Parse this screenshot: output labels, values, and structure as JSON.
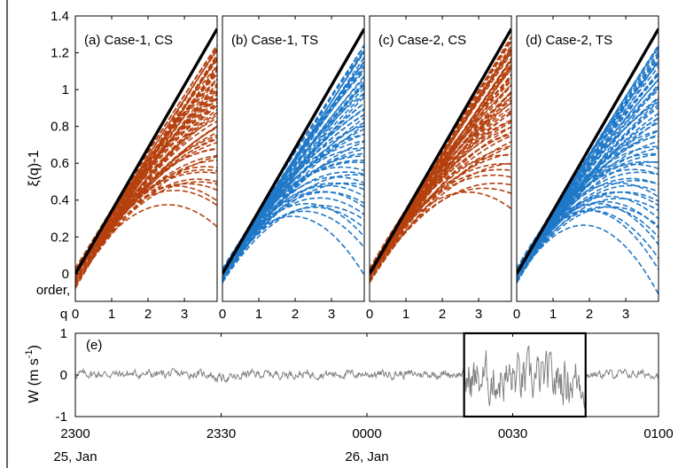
{
  "chart_data": [
    {
      "type": "line",
      "panel": "(a)",
      "title": "(a) Case-1, CS",
      "ylabel": "ξ(q)-1",
      "xlabel": "q",
      "xlabel_prefix": "order,",
      "x": [
        0,
        1,
        2,
        3,
        3.9
      ],
      "xticks": [
        "0",
        "1",
        "2",
        "3"
      ],
      "yticks": [
        "0",
        "0.2",
        "0.4",
        "0.6",
        "0.8",
        "1",
        "1.2",
        "1.4"
      ],
      "xlim": [
        0,
        3.9
      ],
      "ylim": [
        -0.15,
        1.4
      ],
      "reference_line": {
        "x": [
          0,
          3.9
        ],
        "y": [
          0.0,
          1.33
        ],
        "color": "#000000"
      },
      "curve_color": "#b5410f",
      "curve_style": "dashed",
      "curve_count": 60,
      "curve_end_range": [
        0.25,
        1.25
      ],
      "curve_start_range": [
        -0.08,
        0.03
      ]
    },
    {
      "type": "line",
      "panel": "(b)",
      "title": "(b) Case-1, TS",
      "x": [
        0,
        1,
        2,
        3,
        3.9
      ],
      "xticks": [
        "0",
        "1",
        "2",
        "3"
      ],
      "xlim": [
        0,
        3.9
      ],
      "ylim": [
        -0.15,
        1.4
      ],
      "reference_line": {
        "x": [
          0,
          3.9
        ],
        "y": [
          0.0,
          1.33
        ],
        "color": "#000000"
      },
      "curve_color": "#1f78c8",
      "curve_style": "dashed",
      "curve_count": 60,
      "curve_end_range": [
        0.0,
        1.25
      ],
      "curve_start_range": [
        -0.05,
        0.03
      ]
    },
    {
      "type": "line",
      "panel": "(c)",
      "title": "(c) Case-2, CS",
      "x": [
        0,
        1,
        2,
        3,
        3.9
      ],
      "xticks": [
        "0",
        "1",
        "2",
        "3"
      ],
      "xlim": [
        0,
        3.9
      ],
      "ylim": [
        -0.15,
        1.4
      ],
      "reference_line": {
        "x": [
          0,
          3.9
        ],
        "y": [
          0.0,
          1.33
        ],
        "color": "#000000"
      },
      "curve_color": "#b5410f",
      "curve_style": "dashed",
      "curve_count": 60,
      "curve_end_range": [
        0.35,
        1.28
      ],
      "curve_start_range": [
        -0.05,
        0.03
      ]
    },
    {
      "type": "line",
      "panel": "(d)",
      "title": "(d) Case-2, TS",
      "x": [
        0,
        1,
        2,
        3,
        3.9
      ],
      "xticks": [
        "0",
        "1",
        "2",
        "3"
      ],
      "xlim": [
        0,
        3.9
      ],
      "ylim": [
        -0.15,
        1.4
      ],
      "reference_line": {
        "x": [
          0,
          3.9
        ],
        "y": [
          0.0,
          1.33
        ],
        "color": "#000000"
      },
      "curve_color": "#1f78c8",
      "curve_style": "dashed",
      "curve_count": 60,
      "curve_end_range": [
        -0.12,
        1.25
      ],
      "curve_start_range": [
        -0.05,
        0.03
      ]
    },
    {
      "type": "line",
      "panel": "(e)",
      "title": "(e)",
      "ylabel": "W (m s",
      "ylabel_sup": "-1",
      "ylabel_close": ")",
      "x_start": "2300",
      "x_end": "0100",
      "xticks": [
        "2300",
        "2330",
        "0000",
        "0030",
        "0100"
      ],
      "xtick_dates": [
        "25, Jan",
        "",
        "26, Jan",
        "",
        ""
      ],
      "yticks": [
        "1",
        "0",
        "-1"
      ],
      "ylim": [
        -1,
        1
      ],
      "series_color": "#808080",
      "series_note": "vertical velocity time series",
      "calm_amplitude": 0.08,
      "active_amplitude": 0.45,
      "active_window": [
        "0020",
        "0045"
      ],
      "highlight_box": {
        "x": [
          "0020",
          "0045"
        ],
        "y": [
          -1,
          1
        ],
        "color": "#000000"
      }
    }
  ]
}
